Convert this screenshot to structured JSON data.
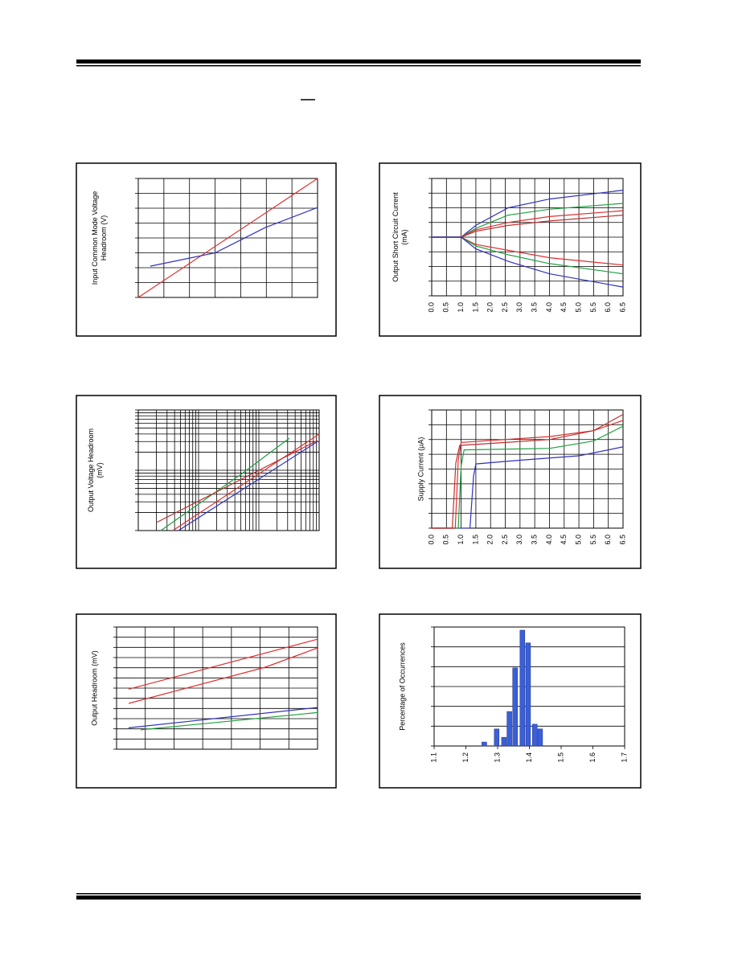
{
  "chart_data": [
    {
      "type": "line",
      "ylabel": [
        "Input Common Mode Voltage",
        "Headroom (V)"
      ],
      "xlim": [
        0,
        7
      ],
      "ylim": [
        0,
        8
      ],
      "xgrid": [
        0,
        1,
        2,
        3,
        4,
        5,
        6,
        7
      ],
      "ygrid": [
        0,
        1,
        2,
        3,
        4,
        5,
        6,
        7,
        8
      ],
      "series": [
        {
          "color": "#e03030",
          "x": [
            0,
            7
          ],
          "values": [
            0,
            8
          ]
        },
        {
          "color": "#3030c0",
          "x": [
            0.47,
            3.0,
            4.96,
            7
          ],
          "values": [
            2.1,
            3.0,
            4.7,
            6.05
          ]
        }
      ]
    },
    {
      "type": "line",
      "ylabel": [
        "Output Short Circuit Current",
        "(mA)"
      ],
      "xlim": [
        0,
        6.5
      ],
      "ylim": [
        0,
        8
      ],
      "xticks": [
        {
          "value": 0,
          "label": "0.0"
        },
        0.5,
        {
          "value": 1,
          "label": "1.0"
        },
        1.5,
        {
          "value": 2,
          "label": "2.0"
        },
        2.5,
        {
          "value": 3,
          "label": "3.0"
        },
        3.5,
        {
          "value": 4,
          "label": "4.0"
        },
        4.5,
        {
          "value": 5,
          "label": "5.0"
        },
        5.5,
        {
          "value": 6,
          "label": "6.0"
        },
        6.5
      ],
      "ygrid": [
        0,
        1,
        2,
        3,
        4,
        5,
        6,
        7,
        8
      ],
      "series": [
        {
          "color": "#3030c0",
          "x": [
            0,
            1,
            1.5,
            2.6,
            4,
            6.5
          ],
          "values": [
            4,
            4,
            4.8,
            6.0,
            6.6,
            7.2
          ]
        },
        {
          "color": "#20a040",
          "x": [
            0,
            1,
            1.5,
            2.6,
            4,
            6.5
          ],
          "values": [
            4,
            4,
            4.6,
            5.5,
            5.9,
            6.3
          ]
        },
        {
          "color": "#e03030",
          "x": [
            0,
            1,
            1.5,
            2.6,
            4,
            6.5
          ],
          "values": [
            4,
            4,
            4.5,
            5.0,
            5.4,
            5.8
          ]
        },
        {
          "color": "#c03030",
          "x": [
            0,
            1,
            1.5,
            2.6,
            4,
            6.5
          ],
          "values": [
            4,
            4,
            4.4,
            4.8,
            5.1,
            5.5
          ]
        },
        {
          "color": "#e03030",
          "x": [
            0,
            1,
            1.5,
            2.6,
            4,
            6.5
          ],
          "values": [
            4,
            4,
            3.5,
            3.1,
            2.6,
            2.1
          ]
        },
        {
          "color": "#20a040",
          "x": [
            0,
            1,
            1.5,
            2.6,
            4,
            6.5
          ],
          "values": [
            4,
            4,
            3.4,
            2.8,
            2.2,
            1.5
          ]
        },
        {
          "color": "#3030c0",
          "x": [
            0,
            1,
            1.5,
            2.6,
            4,
            6.5
          ],
          "values": [
            4,
            4,
            3.2,
            2.35,
            1.5,
            0.6
          ]
        }
      ]
    },
    {
      "type": "line",
      "ylabel": [
        "Output Voltage Headroom",
        "(mV)"
      ],
      "xlog": true,
      "ylog": true,
      "xlim": [
        0.1,
        100
      ],
      "ylim": [
        1,
        100
      ],
      "xgrid": [
        0.1,
        0.2,
        0.3,
        0.4,
        0.5,
        0.6,
        0.7,
        0.8,
        0.9,
        1,
        2,
        3,
        4,
        5,
        6,
        7,
        8,
        9,
        10,
        20,
        30,
        40,
        50,
        60,
        70,
        80,
        90,
        100
      ],
      "ygrid": [
        1,
        2,
        3,
        4,
        5,
        6,
        7,
        8,
        9,
        10,
        20,
        30,
        40,
        50,
        60,
        70,
        80,
        90,
        100
      ],
      "series": [
        {
          "color": "#20a040",
          "x": [
            0.236,
            5.09,
            32
          ],
          "values": [
            1,
            8.6,
            34
          ]
        },
        {
          "color": "#e03030",
          "x": [
            0.374,
            100
          ],
          "values": [
            1,
            39.8
          ]
        },
        {
          "color": "#c03030",
          "x": [
            0.2,
            94.1
          ],
          "values": [
            1.36,
            31.2
          ]
        },
        {
          "color": "#3030c0",
          "x": [
            0.464,
            94.1
          ],
          "values": [
            1,
            30
          ]
        }
      ]
    },
    {
      "type": "line",
      "ylabel": [
        "Supply Current (µA)"
      ],
      "xlim": [
        0,
        6.5
      ],
      "ylim": [
        0,
        8
      ],
      "xticks": [
        {
          "value": 0,
          "label": "0.0"
        },
        0.5,
        {
          "value": 1,
          "label": "1.0"
        },
        1.5,
        {
          "value": 2,
          "label": "2.0"
        },
        2.5,
        {
          "value": 3,
          "label": "3.0"
        },
        3.5,
        {
          "value": 4,
          "label": "4.0"
        },
        4.5,
        {
          "value": 5,
          "label": "5.0"
        },
        5.5,
        {
          "value": 6,
          "label": "6.0"
        },
        6.5
      ],
      "ygrid": [
        0,
        1,
        2,
        3,
        4,
        5,
        6,
        7,
        8
      ],
      "series": [
        {
          "color": "#3030c0",
          "x": [
            0,
            1.3,
            1.42,
            1.5,
            3,
            5,
            6.5
          ],
          "values": [
            0,
            0,
            3.5,
            4.35,
            4.6,
            4.9,
            5.5
          ]
        },
        {
          "color": "#20a040",
          "x": [
            0,
            0.9,
            1.0,
            1.1,
            4,
            5.5,
            6.5
          ],
          "values": [
            0,
            0,
            4.2,
            5.3,
            5.4,
            5.9,
            6.9
          ]
        },
        {
          "color": "#e03030",
          "x": [
            0,
            0.8,
            0.9,
            1.0,
            4,
            5.5,
            6.5
          ],
          "values": [
            0,
            0,
            4.6,
            5.8,
            6.2,
            6.6,
            7.3
          ]
        },
        {
          "color": "#c03030",
          "x": [
            0,
            0.7,
            0.82,
            0.95,
            4,
            5.5,
            6.5
          ],
          "values": [
            0,
            0,
            4.4,
            5.6,
            6.0,
            6.6,
            7.7
          ]
        }
      ]
    },
    {
      "type": "line",
      "ylabel": [
        "Output Headroom (mV)"
      ],
      "xlim": [
        0,
        7
      ],
      "ylim": [
        0,
        12
      ],
      "xgrid": [
        0,
        1,
        2,
        3,
        4,
        5,
        6,
        7
      ],
      "ygrid": [
        0,
        1,
        2,
        3,
        4,
        5,
        6,
        7,
        8,
        9,
        10,
        11,
        12
      ],
      "series": [
        {
          "color": "#e03030",
          "x": [
            0.42,
            7
          ],
          "values": [
            5.9,
            10.8
          ]
        },
        {
          "color": "#e03030",
          "x": [
            0.42,
            5.18,
            7
          ],
          "values": [
            4.5,
            8.05,
            9.95
          ]
        },
        {
          "color": "#3030c0",
          "x": [
            0.42,
            7
          ],
          "values": [
            2.1,
            4.1
          ]
        },
        {
          "color": "#20a040",
          "x": [
            0.84,
            7
          ],
          "values": [
            1.9,
            3.6
          ]
        }
      ]
    },
    {
      "type": "bar",
      "ylabel": [
        "Percentage of Occurrences"
      ],
      "color": "#3a5fd8",
      "xlim": [
        1.1,
        1.7
      ],
      "ylim": [
        0,
        30
      ],
      "xticks": [
        1.1,
        1.2,
        1.3,
        1.4,
        1.5,
        1.6,
        1.7
      ],
      "ygrid": [
        0,
        5,
        10,
        15,
        20,
        25,
        30
      ],
      "x": [
        1.258,
        1.297,
        1.32,
        1.337,
        1.355,
        1.378,
        1.396,
        1.417,
        1.434
      ],
      "values": [
        1,
        4.3,
        2.2,
        8.7,
        19.7,
        29.2,
        26,
        5.5,
        4.3
      ]
    }
  ]
}
